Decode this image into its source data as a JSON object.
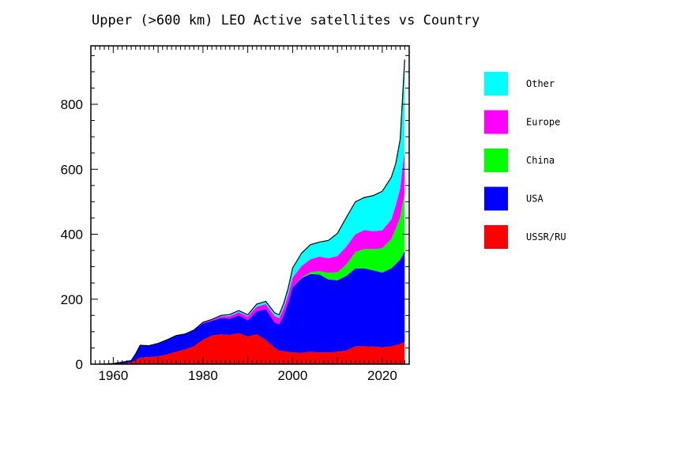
{
  "chart_data": {
    "type": "area",
    "stacked": true,
    "title": "Upper (>600 km) LEO Active satellites vs Country",
    "xlabel": "",
    "ylabel": "",
    "xlim": [
      1955,
      2026
    ],
    "ylim": [
      0,
      980
    ],
    "x_ticks": [
      1960,
      1980,
      2000,
      2020
    ],
    "y_ticks": [
      0,
      200,
      400,
      600,
      800
    ],
    "grid": false,
    "legend_position": "right",
    "x": [
      1957,
      1960,
      1962,
      1964,
      1965,
      1966,
      1968,
      1970,
      1972,
      1974,
      1976,
      1978,
      1980,
      1982,
      1984,
      1986,
      1988,
      1990,
      1992,
      1994,
      1996,
      1997,
      1998,
      1999,
      2000,
      2002,
      2004,
      2006,
      2008,
      2010,
      2012,
      2014,
      2016,
      2018,
      2020,
      2022,
      2023,
      2024,
      2025
    ],
    "series": [
      {
        "name": "USSR/RU",
        "color": "#ff0000",
        "values": [
          0,
          0,
          2,
          5,
          12,
          20,
          22,
          24,
          30,
          38,
          45,
          55,
          75,
          88,
          92,
          90,
          95,
          85,
          92,
          75,
          50,
          42,
          40,
          38,
          36,
          35,
          38,
          36,
          36,
          38,
          42,
          55,
          55,
          54,
          52,
          55,
          58,
          62,
          68
        ]
      },
      {
        "name": "USA",
        "color": "#0000ff",
        "values": [
          0,
          2,
          4,
          6,
          20,
          38,
          35,
          40,
          45,
          50,
          48,
          50,
          50,
          45,
          50,
          50,
          55,
          50,
          70,
          95,
          78,
          80,
          110,
          150,
          200,
          230,
          240,
          240,
          225,
          220,
          230,
          240,
          240,
          235,
          230,
          240,
          250,
          260,
          280
        ]
      },
      {
        "name": "China",
        "color": "#00ff00",
        "values": [
          0,
          0,
          0,
          0,
          0,
          0,
          0,
          0,
          0,
          0,
          0,
          0,
          0,
          0,
          0,
          0,
          0,
          0,
          0,
          0,
          0,
          0,
          0,
          0,
          0,
          2,
          5,
          10,
          20,
          25,
          35,
          50,
          60,
          65,
          75,
          90,
          110,
          130,
          180
        ]
      },
      {
        "name": "Europe",
        "color": "#ff00ff",
        "values": [
          0,
          0,
          0,
          0,
          0,
          0,
          0,
          0,
          0,
          0,
          0,
          0,
          2,
          3,
          5,
          8,
          10,
          12,
          15,
          15,
          20,
          20,
          22,
          25,
          30,
          35,
          40,
          45,
          45,
          50,
          55,
          55,
          58,
          55,
          55,
          60,
          70,
          90,
          130
        ]
      },
      {
        "name": "Other",
        "color": "#00ffff",
        "values": [
          0,
          0,
          0,
          0,
          0,
          0,
          0,
          0,
          0,
          0,
          0,
          0,
          2,
          2,
          3,
          5,
          5,
          5,
          8,
          8,
          10,
          10,
          15,
          20,
          30,
          40,
          45,
          45,
          55,
          70,
          90,
          100,
          100,
          110,
          120,
          130,
          130,
          150,
          280
        ]
      }
    ]
  }
}
